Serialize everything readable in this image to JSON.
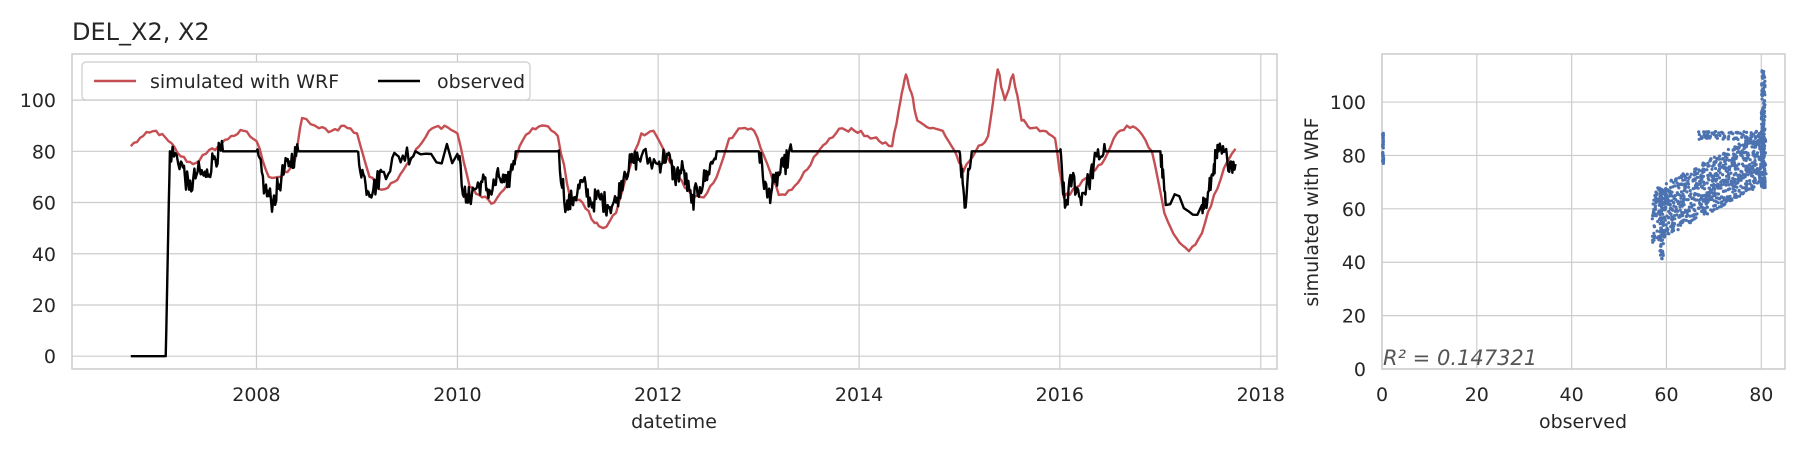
{
  "title": "DEL_X2, X2",
  "chart_data": [
    {
      "type": "line",
      "xlabel": "datetime",
      "ylabel": "",
      "x_tick_labels": [
        "2008",
        "2010",
        "2012",
        "2014",
        "2016",
        "2018"
      ],
      "y_tick_labels": [
        "0",
        "20",
        "40",
        "60",
        "80",
        "100"
      ],
      "xlim": [
        "2006-03-01",
        "2018-03-01"
      ],
      "ylim": [
        -5,
        118
      ],
      "grid": true,
      "legend": "top-left",
      "series": [
        {
          "name": "simulated with WRF",
          "color": "#c44e52",
          "points": [
            [
              "2006-10-01",
              82
            ],
            [
              "2006-11-15",
              86
            ],
            [
              "2007-01-01",
              88
            ],
            [
              "2007-02-15",
              84
            ],
            [
              "2007-04-01",
              78
            ],
            [
              "2007-05-15",
              75
            ],
            [
              "2007-07-01",
              79
            ],
            [
              "2007-08-15",
              82
            ],
            [
              "2007-10-01",
              86
            ],
            [
              "2007-11-15",
              88
            ],
            [
              "2008-01-01",
              84
            ],
            [
              "2008-02-15",
              70
            ],
            [
              "2008-04-01",
              70
            ],
            [
              "2008-05-15",
              74
            ],
            [
              "2008-06-15",
              93
            ],
            [
              "2008-08-15",
              89
            ],
            [
              "2008-10-01",
              88
            ],
            [
              "2008-11-15",
              90
            ],
            [
              "2009-01-01",
              87
            ],
            [
              "2009-02-15",
              70
            ],
            [
              "2009-04-01",
              65
            ],
            [
              "2009-05-15",
              68
            ],
            [
              "2009-07-01",
              75
            ],
            [
              "2009-08-15",
              82
            ],
            [
              "2009-10-01",
              89
            ],
            [
              "2009-11-15",
              90
            ],
            [
              "2010-01-01",
              87
            ],
            [
              "2010-02-15",
              66
            ],
            [
              "2010-04-01",
              62
            ],
            [
              "2010-05-15",
              60
            ],
            [
              "2010-07-01",
              67
            ],
            [
              "2010-08-15",
              82
            ],
            [
              "2010-10-01",
              89
            ],
            [
              "2010-11-15",
              90
            ],
            [
              "2011-01-01",
              86
            ],
            [
              "2011-02-15",
              62
            ],
            [
              "2011-04-01",
              60
            ],
            [
              "2011-05-15",
              52
            ],
            [
              "2011-06-15",
              50
            ],
            [
              "2011-08-01",
              56
            ],
            [
              "2011-09-15",
              72
            ],
            [
              "2011-11-01",
              87
            ],
            [
              "2011-12-15",
              88
            ],
            [
              "2012-02-01",
              78
            ],
            [
              "2012-03-15",
              70
            ],
            [
              "2012-05-01",
              63
            ],
            [
              "2012-06-15",
              62
            ],
            [
              "2012-08-01",
              70
            ],
            [
              "2012-09-15",
              85
            ],
            [
              "2012-11-01",
              89
            ],
            [
              "2012-12-15",
              88
            ],
            [
              "2013-02-01",
              75
            ],
            [
              "2013-03-15",
              63
            ],
            [
              "2013-05-01",
              65
            ],
            [
              "2013-06-15",
              72
            ],
            [
              "2013-08-01",
              79
            ],
            [
              "2013-09-15",
              85
            ],
            [
              "2013-11-01",
              89
            ],
            [
              "2013-12-15",
              88
            ],
            [
              "2014-02-01",
              86
            ],
            [
              "2014-03-15",
              84
            ],
            [
              "2014-05-01",
              82
            ],
            [
              "2014-06-01",
              100
            ],
            [
              "2014-06-20",
              110
            ],
            [
              "2014-07-10",
              103
            ],
            [
              "2014-08-01",
              92
            ],
            [
              "2014-09-15",
              89
            ],
            [
              "2014-11-01",
              88
            ],
            [
              "2014-12-15",
              80
            ],
            [
              "2015-01-15",
              72
            ],
            [
              "2015-03-01",
              80
            ],
            [
              "2015-04-15",
              86
            ],
            [
              "2015-05-20",
              112
            ],
            [
              "2015-06-15",
              100
            ],
            [
              "2015-07-15",
              110
            ],
            [
              "2015-08-15",
              92
            ],
            [
              "2015-09-15",
              89
            ],
            [
              "2015-11-01",
              88
            ],
            [
              "2015-12-15",
              85
            ],
            [
              "2016-01-15",
              62
            ],
            [
              "2016-03-01",
              66
            ],
            [
              "2016-04-15",
              70
            ],
            [
              "2016-06-01",
              75
            ],
            [
              "2016-07-15",
              85
            ],
            [
              "2016-09-01",
              90
            ],
            [
              "2016-10-15",
              88
            ],
            [
              "2016-12-01",
              80
            ],
            [
              "2017-01-15",
              56
            ],
            [
              "2017-03-01",
              46
            ],
            [
              "2017-04-15",
              41
            ],
            [
              "2017-06-01",
              48
            ],
            [
              "2017-07-15",
              63
            ],
            [
              "2017-09-01",
              76
            ],
            [
              "2017-10-01",
              81
            ]
          ]
        },
        {
          "name": "observed",
          "color": "#000000",
          "points": [
            [
              "2006-10-01",
              0
            ],
            [
              "2007-02-05",
              0
            ],
            [
              "2007-02-20",
              80
            ],
            [
              "2007-04-01",
              76
            ],
            [
              "2007-05-01",
              65
            ],
            [
              "2007-06-01",
              72
            ],
            [
              "2007-07-01",
              70
            ],
            [
              "2007-08-01",
              78
            ],
            [
              "2007-09-01",
              80
            ],
            [
              "2008-01-01",
              80
            ],
            [
              "2008-02-01",
              65
            ],
            [
              "2008-03-01",
              60
            ],
            [
              "2008-04-01",
              70
            ],
            [
              "2008-05-01",
              76
            ],
            [
              "2008-06-01",
              80
            ],
            [
              "2009-01-01",
              80
            ],
            [
              "2009-02-01",
              67
            ],
            [
              "2009-03-01",
              65
            ],
            [
              "2009-04-01",
              72
            ],
            [
              "2009-06-01",
              78
            ],
            [
              "2009-08-01",
              80
            ],
            [
              "2010-01-01",
              79
            ],
            [
              "2010-02-01",
              60
            ],
            [
              "2010-03-01",
              65
            ],
            [
              "2010-04-01",
              68
            ],
            [
              "2010-05-01",
              64
            ],
            [
              "2010-06-01",
              70
            ],
            [
              "2010-07-01",
              66
            ],
            [
              "2010-08-01",
              80
            ],
            [
              "2011-01-01",
              80
            ],
            [
              "2011-02-01",
              58
            ],
            [
              "2011-03-01",
              62
            ],
            [
              "2011-04-01",
              68
            ],
            [
              "2011-05-01",
              60
            ],
            [
              "2011-06-01",
              62
            ],
            [
              "2011-07-01",
              59
            ],
            [
              "2011-08-01",
              60
            ],
            [
              "2011-09-01",
              72
            ],
            [
              "2011-10-01",
              76
            ],
            [
              "2011-11-01",
              78
            ],
            [
              "2012-01-01",
              75
            ],
            [
              "2012-02-01",
              79
            ],
            [
              "2012-03-01",
              70
            ],
            [
              "2012-04-01",
              73
            ],
            [
              "2012-05-01",
              60
            ],
            [
              "2012-06-01",
              66
            ],
            [
              "2012-07-01",
              72
            ],
            [
              "2012-08-01",
              80
            ],
            [
              "2013-01-01",
              80
            ],
            [
              "2013-02-01",
              62
            ],
            [
              "2013-03-01",
              68
            ],
            [
              "2013-04-01",
              74
            ],
            [
              "2013-05-01",
              80
            ],
            [
              "2014-01-01",
              80
            ],
            [
              "2014-02-01",
              80
            ],
            [
              "2015-01-01",
              80
            ],
            [
              "2015-01-20",
              58
            ],
            [
              "2015-02-15",
              80
            ],
            [
              "2016-01-01",
              80
            ],
            [
              "2016-01-20",
              58
            ],
            [
              "2016-02-15",
              70
            ],
            [
              "2016-03-15",
              62
            ],
            [
              "2016-04-15",
              68
            ],
            [
              "2016-05-15",
              78
            ],
            [
              "2016-06-15",
              80
            ],
            [
              "2017-01-01",
              80
            ],
            [
              "2017-01-20",
              59
            ],
            [
              "2017-06-01",
              59
            ],
            [
              "2017-06-20",
              60
            ],
            [
              "2017-07-15",
              75
            ],
            [
              "2017-08-01",
              80
            ],
            [
              "2017-09-01",
              77
            ],
            [
              "2017-10-01",
              75
            ]
          ]
        }
      ]
    },
    {
      "type": "scatter",
      "xlabel": "observed",
      "ylabel": "simulated with WRF",
      "x_tick_labels": [
        "0",
        "20",
        "40",
        "60",
        "80"
      ],
      "y_tick_labels": [
        "0",
        "20",
        "40",
        "60",
        "80",
        "100"
      ],
      "xlim": [
        0,
        85
      ],
      "ylim": [
        0,
        118
      ],
      "grid": true,
      "color": "#4c72b0",
      "annotation": "R² = 0.147321",
      "clusters": [
        {
          "x_range": [
            0,
            0.3
          ],
          "y_range": [
            77,
            89
          ]
        },
        {
          "x_range": [
            57,
            81
          ],
          "y_range": [
            52,
            88
          ]
        },
        {
          "x_range": [
            80,
            81
          ],
          "y_range": [
            68,
            112
          ]
        },
        {
          "x_range": [
            58.5,
            59.5
          ],
          "y_range": [
            41,
            68
          ]
        }
      ]
    }
  ]
}
